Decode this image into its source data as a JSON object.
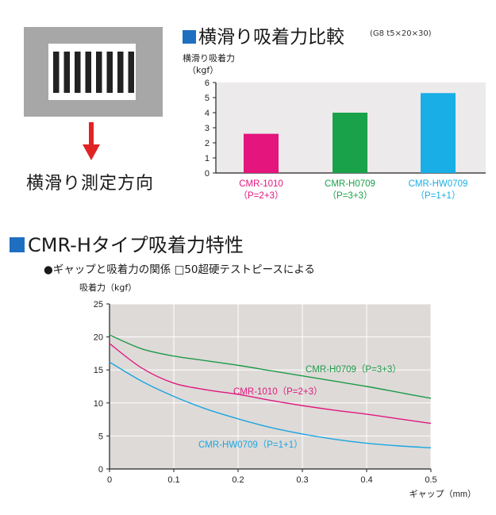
{
  "colors": {
    "accent_square": "#1f6fc1",
    "arrow": "#e02424",
    "diagram_bg": "#a7a7a7",
    "plot_bg": "#dedad8"
  },
  "left_panel": {
    "direction_label": "横滑り測定方向",
    "icon": "gray-plate-with-vertical-slots"
  },
  "bar_section": {
    "title": "横滑り吸着力比較",
    "condition": "(G8 t5×20×30)",
    "ylabel_line1": "横滑り吸着力",
    "ylabel_line2": "（kgf）"
  },
  "line_section": {
    "title": "CMR-Hタイプ吸着力特性",
    "subtitle": "●ギャップと吸着力の関係 □50超硬テストピースによる",
    "ylabel": "吸着力（kgf）",
    "xlabel": "ギャップ（mm）"
  },
  "chart_data": [
    {
      "type": "bar",
      "categories": [
        "CMR-1010",
        "CMR-H0709",
        "CMR-HW0709"
      ],
      "category_sublabels": [
        "（P=2+3）",
        "（P=3+3）",
        "（P=1+1）"
      ],
      "values": [
        2.6,
        4.0,
        5.3
      ],
      "colors": [
        "#e4157d",
        "#19a24a",
        "#19aee6"
      ],
      "ylim": [
        0,
        6
      ],
      "yticks": [
        0,
        1,
        2,
        3,
        4,
        5,
        6
      ],
      "title": "横滑り吸着力比較",
      "ylabel": "横滑り吸着力（kgf）",
      "grid": false
    },
    {
      "type": "line",
      "x": [
        0,
        0.05,
        0.1,
        0.15,
        0.2,
        0.25,
        0.3,
        0.35,
        0.4,
        0.45,
        0.5
      ],
      "series": [
        {
          "name": "CMR-H0709（P=3+3）",
          "color": "#1e9a48",
          "values": [
            20.3,
            18.2,
            17.1,
            16.4,
            15.7,
            14.9,
            14.1,
            13.3,
            12.5,
            11.6,
            10.7
          ]
        },
        {
          "name": "CMR-1010（P=2+3）",
          "color": "#e0197f",
          "values": [
            19.0,
            15.3,
            13.0,
            12.0,
            11.3,
            10.4,
            9.6,
            8.9,
            8.3,
            7.6,
            6.9
          ]
        },
        {
          "name": "CMR-HW0709（P=1+1）",
          "color": "#1aa6e0",
          "values": [
            16.2,
            13.3,
            11.0,
            9.1,
            7.6,
            6.3,
            5.3,
            4.5,
            3.9,
            3.5,
            3.2
          ]
        }
      ],
      "xticks": [
        "0",
        "0.1",
        "0.2",
        "0.3",
        "0.4",
        "0.5"
      ],
      "yticks": [
        "0",
        "5",
        "10",
        "15",
        "20",
        "25"
      ],
      "xlim": [
        0,
        0.5
      ],
      "ylim": [
        0,
        25
      ],
      "xlabel": "ギャップ（mm）",
      "ylabel": "吸着力（kgf）",
      "grid": true
    }
  ]
}
